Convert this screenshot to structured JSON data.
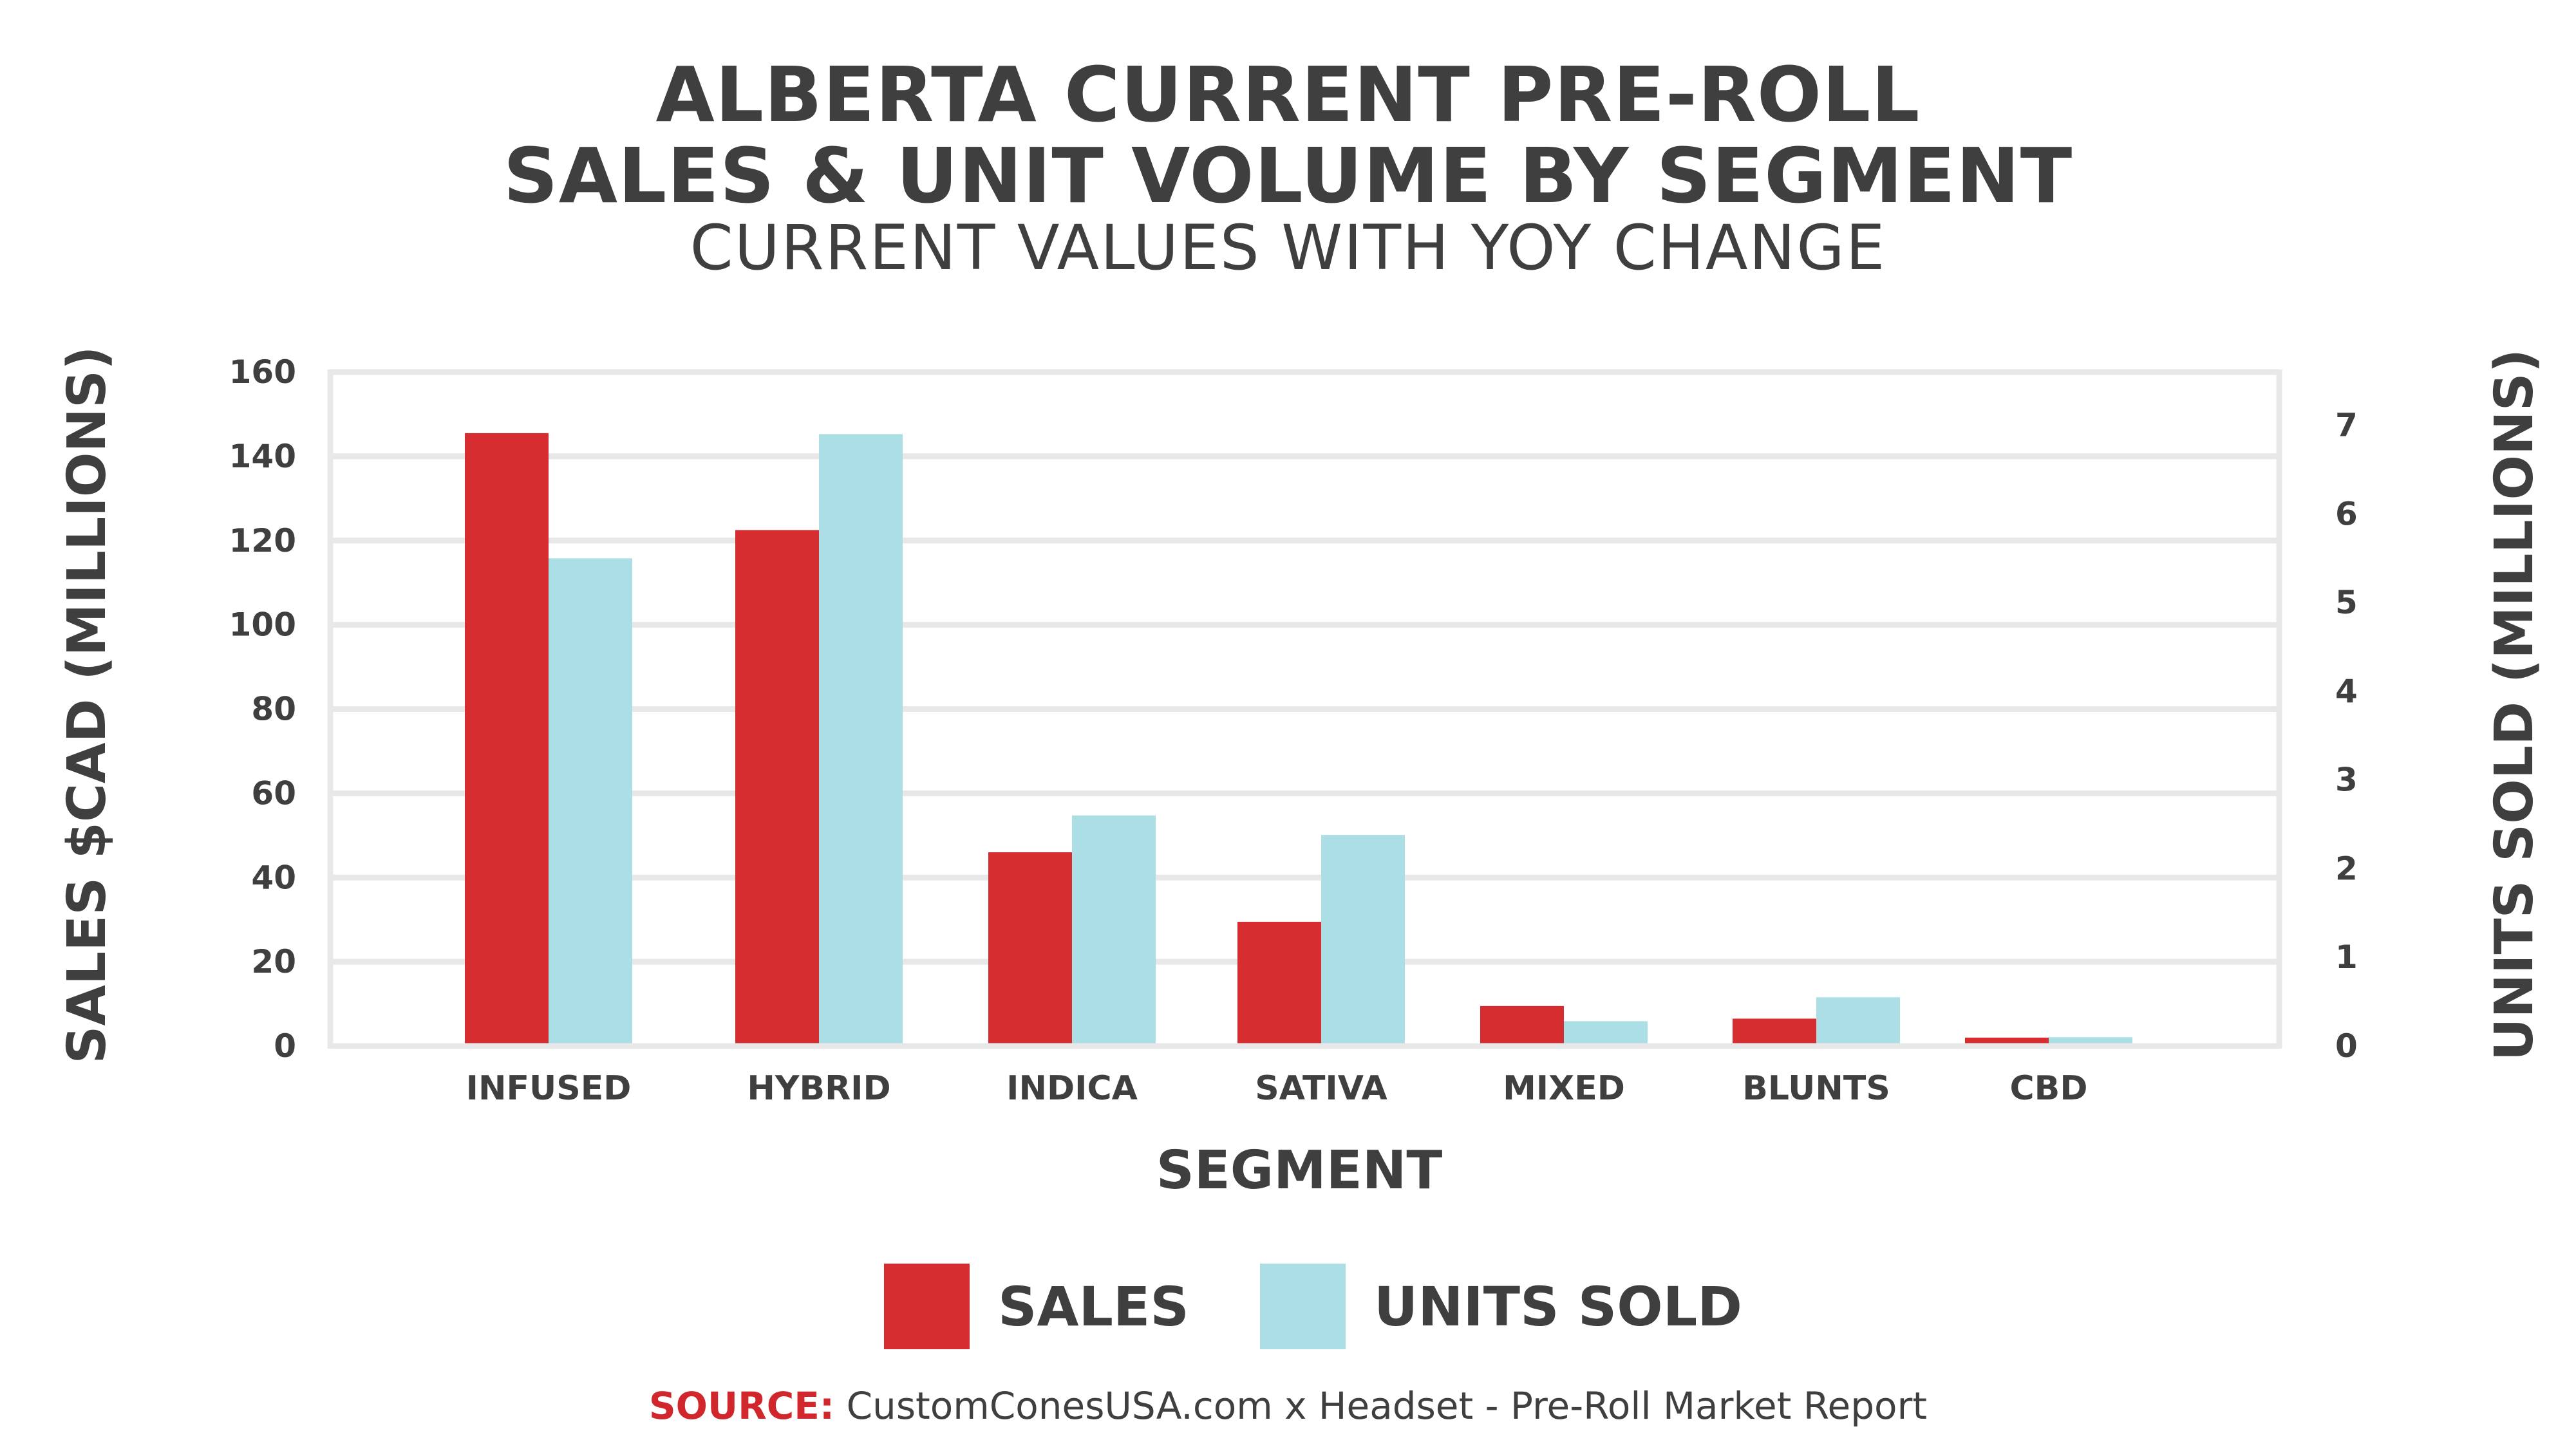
{
  "title_line1": "ALBERTA CURRENT PRE-ROLL",
  "title_line2": "SALES & UNIT VOLUME BY SEGMENT",
  "subtitle": "CURRENT VALUES WITH YOY CHANGE",
  "source": {
    "label": "SOURCE:",
    "text": "CustomConesUSA.com x Headset - Pre-Roll Market Report"
  },
  "colors": {
    "sales": "#d62d30",
    "units": "#acdee5",
    "text": "#3f3f3f",
    "grid": "#e8e8e8"
  },
  "chart_data": {
    "type": "bar",
    "title": "ALBERTA CURRENT PRE-ROLL SALES & UNIT VOLUME BY SEGMENT",
    "subtitle": "CURRENT VALUES WITH YOY CHANGE",
    "xlabel": "SEGMENT",
    "ylabel": "SALES $CAD (MILLIONS)",
    "y2label": "UNITS SOLD (MILLIONS)",
    "categories": [
      "INFUSED",
      "HYBRID",
      "INDICA",
      "SATIVA",
      "MIXED",
      "BLUNTS",
      "CBD"
    ],
    "series": [
      {
        "name": "SALES",
        "axis": "left",
        "values": [
          145.5,
          122.5,
          46,
          29.5,
          9.5,
          6.5,
          2
        ]
      },
      {
        "name": "UNITS SOLD",
        "axis": "right",
        "values": [
          5.5,
          6.9,
          2.6,
          2.38,
          0.28,
          0.55,
          0.1
        ]
      }
    ],
    "ylim": [
      0,
      160
    ],
    "y_ticks": [
      0,
      20,
      40,
      60,
      80,
      100,
      120,
      140,
      160
    ],
    "y2lim": [
      0,
      7.6
    ],
    "y2_ticks": [
      0,
      1,
      2,
      3,
      4,
      5,
      6,
      7
    ],
    "grid": true,
    "legend": "bottom-center"
  }
}
